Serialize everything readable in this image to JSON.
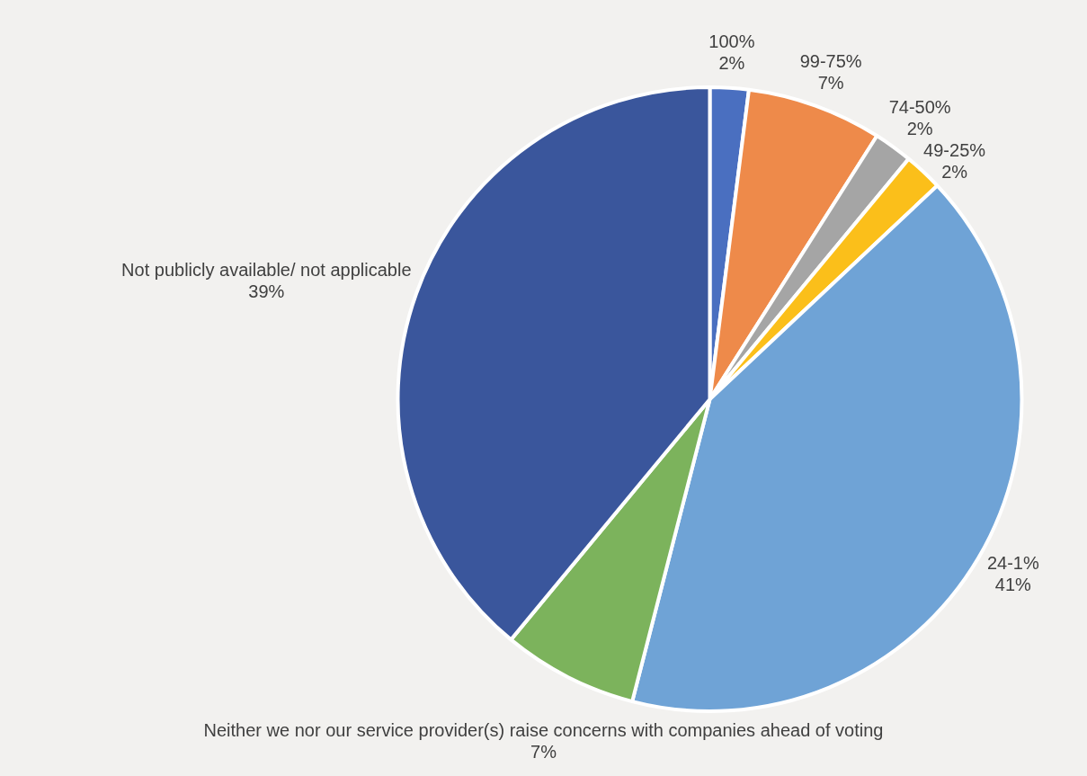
{
  "chart_data": {
    "type": "pie",
    "categories": [
      "100%",
      "99-75%",
      "74-50%",
      "49-25%",
      "24-1%",
      "Neither we nor our service provider(s) raise concerns with companies ahead of voting",
      "Not publicly available/ not applicable"
    ],
    "values": [
      2,
      7,
      2,
      2,
      41,
      7,
      39
    ],
    "colors": [
      "#4a6fc0",
      "#ee8a4a",
      "#a5a5a5",
      "#fbbf1a",
      "#6fa3d6",
      "#7cb35c",
      "#3a569c"
    ],
    "value_labels": [
      "2%",
      "7%",
      "2%",
      "2%",
      "41%",
      "7%",
      "39%"
    ],
    "legend": false
  }
}
